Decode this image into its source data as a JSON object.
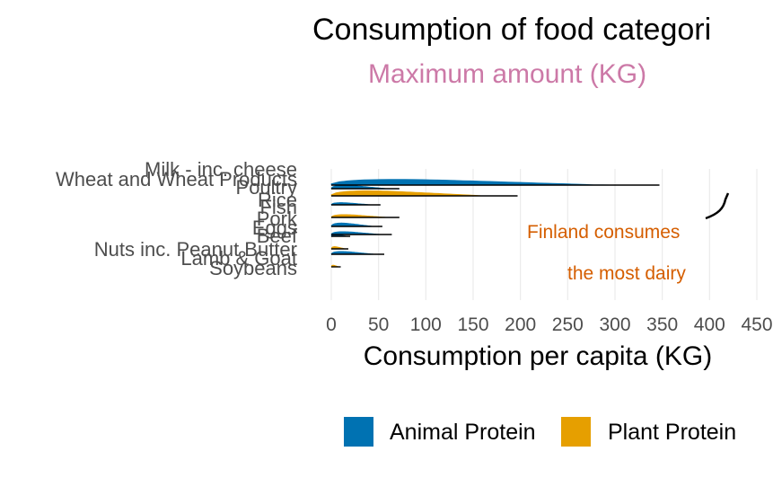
{
  "chart_data": {
    "type": "ridgeline",
    "title": "Consumption of food categori",
    "subtitle": "Maximum amount (KG)",
    "xlabel": "Consumption per capita (KG)",
    "ylabel": "",
    "xlim": [
      0,
      450
    ],
    "xticks": [
      0,
      50,
      100,
      150,
      200,
      250,
      300,
      350,
      400,
      450
    ],
    "grid": true,
    "legend_position": "bottom",
    "categories": [
      "Milk - inc. cheese",
      "Wheat and Wheat Products",
      "Poultry",
      "Rice",
      "Fish",
      "Pork",
      "Eggs",
      "Beef",
      "Nuts inc. Peanut Butter",
      "Lamb & Goat",
      "Soybeans"
    ],
    "series": [
      {
        "name": "Animal Protein",
        "color": "#0072B2",
        "items": [
          {
            "category": "Milk - inc. cheese",
            "max": 347
          },
          {
            "category": "Poultry",
            "max": 72
          },
          {
            "category": "Fish",
            "max": 52
          },
          {
            "category": "Pork",
            "max": 54
          },
          {
            "category": "Eggs",
            "max": 20
          },
          {
            "category": "Beef",
            "max": 64
          },
          {
            "category": "Lamb & Goat",
            "max": 56
          }
        ]
      },
      {
        "name": "Plant Protein",
        "color": "#E69F00",
        "items": [
          {
            "category": "Wheat and Wheat Products",
            "max": 197
          },
          {
            "category": "Rice",
            "max": 72
          },
          {
            "category": "Nuts inc. Peanut Butter",
            "max": 18
          },
          {
            "category": "Soybeans",
            "max": 10
          }
        ]
      }
    ],
    "annotations": [
      "Finland consumes",
      "the most dairy"
    ]
  },
  "colors": {
    "animal": "#0072B2",
    "plant": "#E69F00",
    "subtitle": "#CC79A7",
    "annotation": "#D55E00",
    "axis_text": "#4D4D4D",
    "grid": "#EBEBEB"
  },
  "legend": {
    "animal_label": "Animal Protein",
    "plant_label": "Plant Protein"
  }
}
